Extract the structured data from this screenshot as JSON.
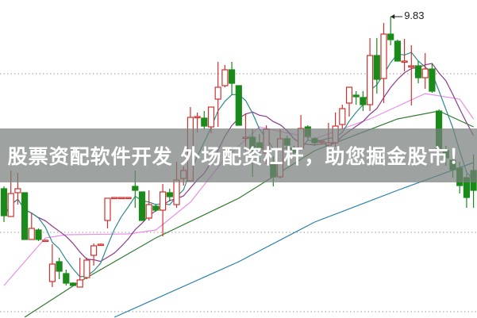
{
  "chart_data": {
    "type": "candlestick",
    "title": "",
    "xlabel": "",
    "ylabel": "",
    "grid": "dotted horizontal",
    "colors": {
      "up": "#d0312d",
      "down": "#1a8a1a",
      "ma5": "#2e8b8b",
      "ma10": "#8b3a8b",
      "ma20": "#e88ee8",
      "ma_long1": "#2f7a2f",
      "ma_long2": "#2a7fa8"
    },
    "candles_ohlc": [
      [
        7.66,
        7.69,
        7.24,
        7.32
      ],
      [
        7.31,
        7.89,
        7.31,
        7.6
      ],
      [
        7.61,
        7.86,
        7.46,
        7.66
      ],
      [
        7.61,
        7.61,
        7.02,
        7.02
      ],
      [
        7.02,
        7.36,
        7.02,
        7.16
      ],
      [
        7.14,
        7.16,
        7.0,
        7.02
      ],
      [
        7.01,
        7.02,
        7.0,
        7.01
      ],
      [
        6.49,
        6.96,
        6.42,
        6.71
      ],
      [
        6.74,
        6.79,
        6.52,
        6.62
      ],
      [
        6.59,
        6.64,
        6.44,
        6.47
      ],
      [
        6.47,
        6.48,
        6.44,
        6.44
      ],
      [
        6.42,
        6.79,
        6.42,
        6.51
      ],
      [
        6.54,
        6.79,
        6.52,
        6.76
      ],
      [
        6.82,
        6.97,
        6.69,
        6.94
      ],
      [
        6.96,
        6.97,
        6.95,
        6.96
      ],
      [
        7.26,
        7.54,
        7.16,
        7.54
      ],
      [
        7.55,
        7.55,
        7.55,
        7.55
      ],
      [
        7.55,
        7.55,
        7.55,
        7.55
      ],
      [
        7.55,
        7.55,
        7.55,
        7.55
      ],
      [
        7.69,
        7.89,
        7.42,
        7.64
      ],
      [
        7.62,
        7.62,
        7.26,
        7.26
      ],
      [
        7.29,
        7.64,
        7.26,
        7.46
      ],
      [
        7.44,
        7.46,
        7.37,
        7.39
      ],
      [
        7.39,
        7.72,
        7.06,
        7.62
      ],
      [
        7.61,
        7.66,
        7.5,
        7.56
      ],
      [
        7.46,
        8.0,
        7.42,
        7.77
      ],
      [
        7.79,
        7.94,
        7.7,
        7.89
      ],
      [
        7.76,
        8.69,
        7.76,
        8.56
      ],
      [
        8.57,
        8.62,
        8.37,
        8.57
      ],
      [
        8.55,
        8.64,
        8.41,
        8.45
      ],
      [
        8.44,
        8.69,
        8.36,
        8.69
      ],
      [
        8.79,
        9.26,
        8.44,
        8.94
      ],
      [
        8.96,
        9.22,
        8.94,
        9.16
      ],
      [
        9.16,
        9.26,
        8.84,
        8.99
      ],
      [
        8.96,
        8.96,
        8.46,
        8.46
      ],
      [
        8.31,
        8.61,
        8.14,
        8.31
      ],
      [
        8.31,
        8.41,
        7.81,
        8.14
      ],
      [
        8.24,
        8.35,
        8.0,
        8.16
      ],
      [
        8.11,
        8.46,
        7.97,
        8.41
      ],
      [
        7.97,
        8.07,
        7.69,
        7.81
      ],
      [
        7.81,
        8.41,
        7.79,
        8.29
      ],
      [
        8.29,
        8.33,
        8.15,
        8.21
      ],
      [
        8.17,
        8.2,
        8.08,
        8.12
      ],
      [
        8.17,
        8.59,
        8.14,
        8.42
      ],
      [
        8.44,
        8.46,
        8.27,
        8.32
      ],
      [
        8.29,
        8.31,
        8.2,
        8.24
      ],
      [
        8.26,
        8.28,
        8.22,
        8.26
      ],
      [
        8.21,
        8.49,
        8.21,
        8.24
      ],
      [
        8.24,
        8.62,
        8.19,
        8.45
      ],
      [
        8.47,
        8.72,
        8.41,
        8.67
      ],
      [
        8.74,
        8.94,
        8.57,
        8.94
      ],
      [
        8.84,
        8.89,
        8.72,
        8.82
      ],
      [
        8.81,
        8.89,
        8.64,
        8.72
      ],
      [
        8.72,
        9.56,
        8.64,
        9.34
      ],
      [
        9.34,
        9.56,
        8.86,
        9.04
      ],
      [
        9.05,
        9.75,
        8.74,
        9.61
      ],
      [
        9.61,
        9.83,
        9.47,
        9.54
      ],
      [
        9.52,
        9.54,
        9.27,
        9.27
      ],
      [
        9.27,
        9.55,
        9.14,
        9.27
      ],
      [
        9.21,
        9.47,
        8.71,
        9.21
      ],
      [
        9.21,
        9.27,
        8.99,
        9.06
      ],
      [
        9.06,
        9.37,
        8.92,
        9.17
      ],
      [
        9.17,
        9.24,
        8.87,
        8.89
      ],
      [
        8.64,
        8.66,
        8.1,
        8.14
      ],
      [
        8.14,
        8.2,
        7.95,
        8.05
      ],
      [
        8.02,
        8.1,
        7.8,
        7.9
      ],
      [
        7.92,
        8.0,
        7.6,
        7.7
      ],
      [
        7.8,
        7.85,
        7.42,
        7.55
      ],
      [
        7.89,
        8.09,
        7.42,
        7.64
      ]
    ],
    "ma20_points": [
      [
        0,
        6.44
      ],
      [
        4,
        6.84
      ],
      [
        6,
        7.04
      ],
      [
        9,
        7.08
      ],
      [
        18,
        7.09
      ],
      [
        22,
        7.14
      ],
      [
        27,
        7.49
      ],
      [
        32,
        8.04
      ],
      [
        37,
        8.44
      ],
      [
        45,
        8.29
      ],
      [
        53,
        8.54
      ],
      [
        61,
        8.86
      ],
      [
        66,
        8.79
      ],
      [
        68,
        8.54
      ]
    ],
    "ma_long1_points": [
      [
        3,
        6.04
      ],
      [
        11,
        6.49
      ],
      [
        22,
        7.04
      ],
      [
        34,
        7.54
      ],
      [
        45,
        8.14
      ],
      [
        57,
        8.54
      ],
      [
        63,
        8.64
      ],
      [
        68,
        8.44
      ]
    ],
    "ma_long2_points": [
      [
        16,
        6.04
      ],
      [
        34,
        6.74
      ],
      [
        45,
        7.24
      ],
      [
        57,
        7.64
      ],
      [
        68,
        7.99
      ]
    ],
    "high_annotation": {
      "label": "9.83",
      "value": 9.83,
      "index": 56
    }
  },
  "banner": {
    "text": "股票资配软件开发 外场配资杠杆，助您掘金股市！"
  }
}
